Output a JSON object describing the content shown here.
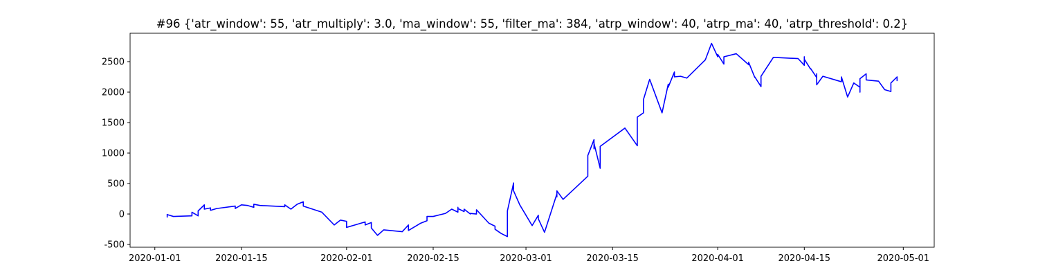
{
  "chart_data": {
    "type": "line",
    "title": "#96 {'atr_window': 55, 'atr_multiply': 3.0, 'ma_window': 55, 'filter_ma': 384, 'atrp_window': 40, 'atrp_ma': 40, 'atrp_threshold': 0.2}",
    "x": [
      "2020-01-03",
      "2020-01-03",
      "2020-01-03",
      "2020-01-04",
      "2020-01-07",
      "2020-01-07",
      "2020-01-08",
      "2020-01-08",
      "2020-01-09",
      "2020-01-09",
      "2020-01-10",
      "2020-01-10",
      "2020-01-11",
      "2020-01-14",
      "2020-01-14",
      "2020-01-15",
      "2020-01-16",
      "2020-01-17",
      "2020-01-17",
      "2020-01-18",
      "2020-01-22",
      "2020-01-22",
      "2020-01-23",
      "2020-01-24",
      "2020-01-25",
      "2020-01-25",
      "2020-01-28",
      "2020-01-30",
      "2020-01-31",
      "2020-02-01",
      "2020-02-01",
      "2020-02-04",
      "2020-02-04",
      "2020-02-05",
      "2020-02-05",
      "2020-02-06",
      "2020-02-06",
      "2020-02-07",
      "2020-02-10",
      "2020-02-11",
      "2020-02-11",
      "2020-02-13",
      "2020-02-14",
      "2020-02-14",
      "2020-02-15",
      "2020-02-17",
      "2020-02-18",
      "2020-02-19",
      "2020-02-19",
      "2020-02-19",
      "2020-02-20",
      "2020-02-20",
      "2020-02-21",
      "2020-02-21",
      "2020-02-22",
      "2020-02-22",
      "2020-02-24",
      "2020-02-25",
      "2020-02-25",
      "2020-02-26",
      "2020-02-27",
      "2020-02-27",
      "2020-02-28",
      "2020-02-28",
      "2020-02-29",
      "2020-03-02",
      "2020-03-03",
      "2020-03-03",
      "2020-03-04",
      "2020-03-06",
      "2020-03-06",
      "2020-03-06",
      "2020-03-07",
      "2020-03-11",
      "2020-03-11",
      "2020-03-11",
      "2020-03-12",
      "2020-03-12",
      "2020-03-12",
      "2020-03-13",
      "2020-03-13",
      "2020-03-17",
      "2020-03-19",
      "2020-03-19",
      "2020-03-20",
      "2020-03-20",
      "2020-03-21",
      "2020-03-23",
      "2020-03-24",
      "2020-03-24",
      "2020-03-25",
      "2020-03-25",
      "2020-03-26",
      "2020-03-27",
      "2020-03-30",
      "2020-03-31",
      "2020-04-01",
      "2020-04-01",
      "2020-04-02",
      "2020-04-02",
      "2020-04-04",
      "2020-04-06",
      "2020-04-06",
      "2020-04-07",
      "2020-04-07",
      "2020-04-08",
      "2020-04-08",
      "2020-04-10",
      "2020-04-14",
      "2020-04-15",
      "2020-04-15",
      "2020-04-15",
      "2020-04-16",
      "2020-04-16",
      "2020-04-17",
      "2020-04-17",
      "2020-04-17",
      "2020-04-18",
      "2020-04-21",
      "2020-04-21",
      "2020-04-22",
      "2020-04-23",
      "2020-04-24",
      "2020-04-24",
      "2020-04-24",
      "2020-04-25",
      "2020-04-25",
      "2020-04-27",
      "2020-04-28",
      "2020-04-29",
      "2020-04-29",
      "2020-04-30",
      "2020-04-30"
    ],
    "series": [
      {
        "color": "#0000ff",
        "values": [
          0,
          -50,
          -10,
          -40,
          -30,
          30,
          -30,
          50,
          150,
          80,
          100,
          60,
          90,
          130,
          90,
          150,
          140,
          110,
          160,
          140,
          120,
          150,
          80,
          160,
          200,
          130,
          30,
          -180,
          -100,
          -120,
          -220,
          -130,
          -180,
          -140,
          -230,
          -350,
          -350,
          -260,
          -290,
          -180,
          -270,
          -150,
          -110,
          -40,
          -40,
          10,
          80,
          30,
          110,
          90,
          40,
          80,
          0,
          10,
          0,
          70,
          -150,
          -200,
          -250,
          -320,
          -370,
          50,
          510,
          380,
          150,
          -190,
          -20,
          -80,
          -300,
          330,
          280,
          380,
          240,
          620,
          870,
          960,
          1220,
          1070,
          1160,
          750,
          1110,
          1410,
          1120,
          1590,
          1660,
          1880,
          2210,
          1660,
          2130,
          2080,
          2330,
          2250,
          2260,
          2230,
          2530,
          2800,
          2580,
          2620,
          2460,
          2580,
          2630,
          2450,
          2490,
          2240,
          2250,
          2090,
          2260,
          2570,
          2550,
          2440,
          2580,
          2540,
          2380,
          2390,
          2240,
          2300,
          2120,
          2260,
          2170,
          2250,
          1920,
          2150,
          2080,
          2000,
          2220,
          2300,
          2200,
          2180,
          2040,
          2010,
          2150,
          2250,
          2180
        ]
      }
    ],
    "xlim": [
      "2019-12-28",
      "2020-05-06"
    ],
    "xticks": [
      "2020-01-01",
      "2020-01-15",
      "2020-02-01",
      "2020-02-15",
      "2020-03-01",
      "2020-03-15",
      "2020-04-01",
      "2020-04-15",
      "2020-05-01"
    ],
    "ylim": [
      -545,
      2966
    ],
    "yticks": [
      -500,
      0,
      500,
      1000,
      1500,
      2000,
      2500
    ]
  }
}
